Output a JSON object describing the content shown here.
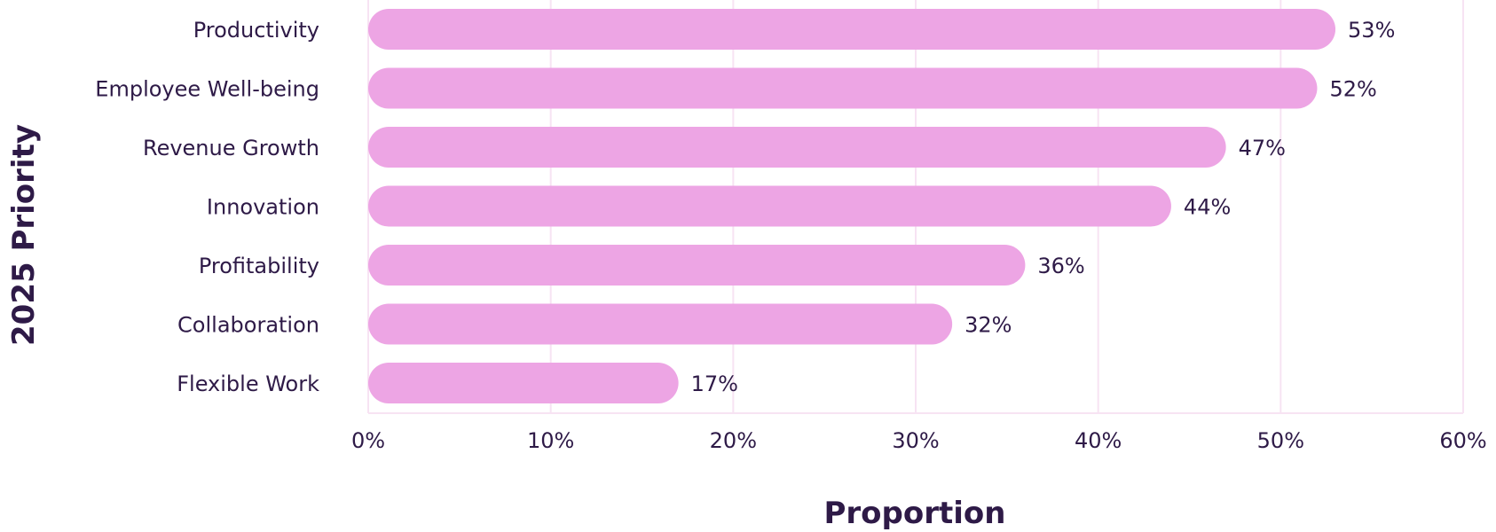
{
  "chart_data": {
    "type": "bar",
    "orientation": "horizontal",
    "categories": [
      "Productivity",
      "Employee Well-being",
      "Revenue Growth",
      "Innovation",
      "Profitability",
      "Collaboration",
      "Flexible Work"
    ],
    "values": [
      53,
      52,
      47,
      44,
      36,
      32,
      17
    ],
    "value_labels": [
      "53%",
      "52%",
      "47%",
      "44%",
      "36%",
      "32%",
      "17%"
    ],
    "xlabel": "Proportion",
    "ylabel": "2025 Priority",
    "xlim": [
      0,
      60
    ],
    "x_ticks": [
      0,
      10,
      20,
      30,
      40,
      50,
      60
    ],
    "x_tick_labels": [
      "0%",
      "10%",
      "20%",
      "30%",
      "40%",
      "50%",
      "60%"
    ],
    "grid": "vertical",
    "legend": "none"
  },
  "colors": {
    "bar": "#eda5e4",
    "text": "#2e1a47",
    "grid": "#f7e3f3"
  }
}
